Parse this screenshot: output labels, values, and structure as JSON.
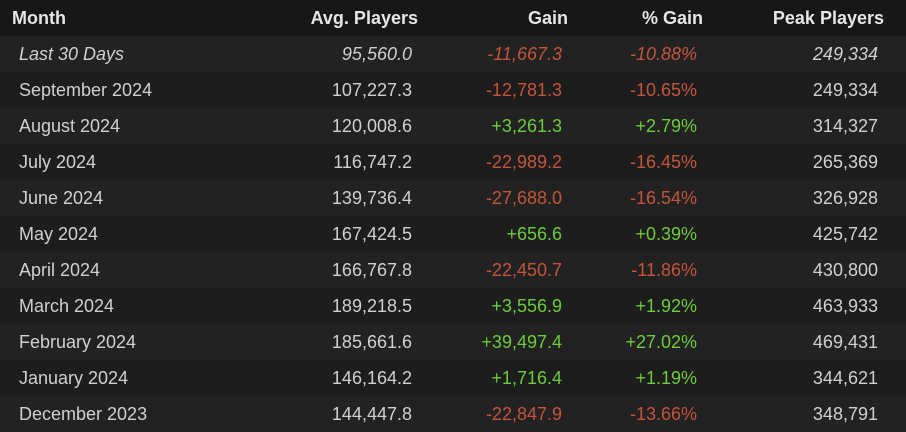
{
  "table": {
    "headers": [
      "Month",
      "Avg. Players",
      "Gain",
      "% Gain",
      "Peak Players"
    ],
    "rows": [
      [
        "Last 30 Days",
        "95,560.0",
        "-11,667.3",
        "-10.88%",
        "249,334"
      ],
      [
        "September 2024",
        "107,227.3",
        "-12,781.3",
        "-10.65%",
        "249,334"
      ],
      [
        "August 2024",
        "120,008.6",
        "+3,261.3",
        "+2.79%",
        "314,327"
      ],
      [
        "July 2024",
        "116,747.2",
        "-22,989.2",
        "-16.45%",
        "265,369"
      ],
      [
        "June 2024",
        "139,736.4",
        "-27,688.0",
        "-16.54%",
        "326,928"
      ],
      [
        "May 2024",
        "167,424.5",
        "+656.6",
        "+0.39%",
        "425,742"
      ],
      [
        "April 2024",
        "166,767.8",
        "-22,450.7",
        "-11.86%",
        "430,800"
      ],
      [
        "March 2024",
        "189,218.5",
        "+3,556.9",
        "+1.92%",
        "463,933"
      ],
      [
        "February 2024",
        "185,661.6",
        "+39,497.4",
        "+27.02%",
        "469,431"
      ],
      [
        "January 2024",
        "146,164.2",
        "+1,716.4",
        "+1.19%",
        "344,621"
      ],
      [
        "December 2023",
        "144,447.8",
        "-22,847.9",
        "-13.66%",
        "348,791"
      ]
    ]
  }
}
